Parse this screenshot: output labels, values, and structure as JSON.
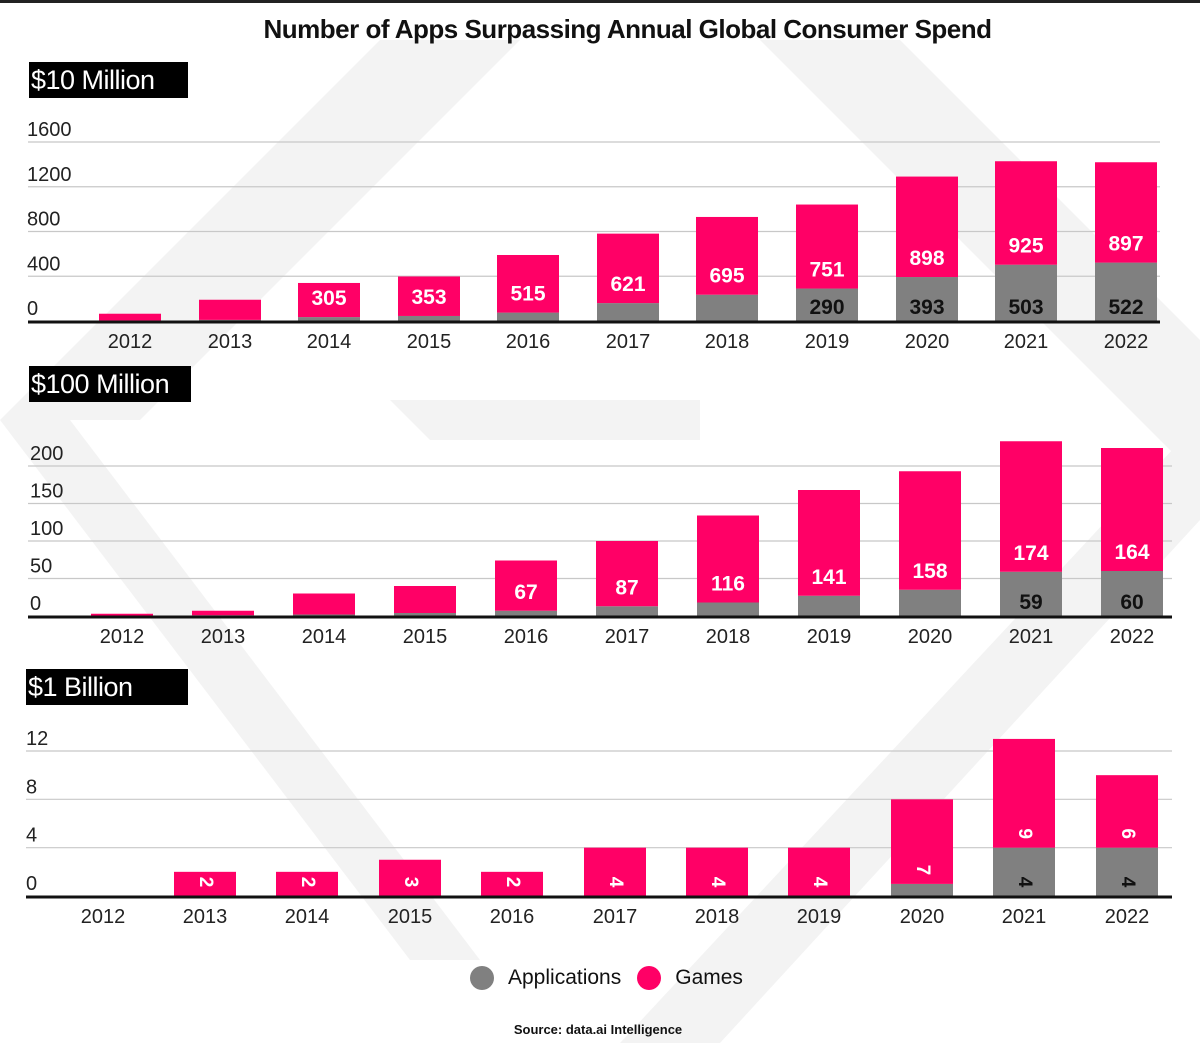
{
  "title": "Number of Apps Surpassing Annual Global Consumer Spend",
  "legend": [
    {
      "label": "Applications",
      "color": "#808080"
    },
    {
      "label": "Games",
      "color": "#ff0066"
    }
  ],
  "source": "Source: data.ai Intelligence",
  "colors": {
    "applications": "#808080",
    "games": "#ff0066",
    "axis": "#111111",
    "grid": "#c8c8c8"
  },
  "chart_data": [
    {
      "type": "bar",
      "stacked": true,
      "title": "$10 Million",
      "categories": [
        "2012",
        "2013",
        "2014",
        "2015",
        "2016",
        "2017",
        "2018",
        "2019",
        "2020",
        "2021",
        "2022"
      ],
      "yticks": [
        0,
        400,
        800,
        1200,
        1600
      ],
      "ylim": [
        0,
        1600
      ],
      "grid": true,
      "series": [
        {
          "name": "Applications",
          "values": [
            5,
            10,
            35,
            45,
            75,
            160,
            235,
            290,
            393,
            503,
            522
          ],
          "labels": [
            null,
            null,
            null,
            null,
            null,
            null,
            null,
            "290",
            "393",
            "503",
            "522"
          ]
        },
        {
          "name": "Games",
          "values": [
            60,
            180,
            305,
            353,
            515,
            621,
            695,
            751,
            898,
            925,
            897
          ],
          "labels": [
            null,
            null,
            "305",
            "353",
            "515",
            "621",
            "695",
            "751",
            "898",
            "925",
            "897"
          ]
        }
      ]
    },
    {
      "type": "bar",
      "stacked": true,
      "title": "$100 Million",
      "categories": [
        "2012",
        "2013",
        "2014",
        "2015",
        "2016",
        "2017",
        "2018",
        "2019",
        "2020",
        "2021",
        "2022"
      ],
      "yticks": [
        0,
        50,
        100,
        150,
        200
      ],
      "ylim": [
        0,
        200
      ],
      "grid": true,
      "series": [
        {
          "name": "Applications",
          "values": [
            0,
            1,
            2,
            4,
            7,
            13,
            18,
            27,
            35,
            59,
            60
          ],
          "labels": [
            null,
            null,
            null,
            null,
            null,
            null,
            null,
            null,
            null,
            "59",
            "60"
          ]
        },
        {
          "name": "Games",
          "values": [
            3,
            6,
            28,
            36,
            67,
            87,
            116,
            141,
            158,
            174,
            164
          ],
          "labels": [
            null,
            null,
            null,
            null,
            "67",
            "87",
            "116",
            "141",
            "158",
            "174",
            "164"
          ]
        }
      ]
    },
    {
      "type": "bar",
      "stacked": true,
      "title": "$1 Billion",
      "categories": [
        "2012",
        "2013",
        "2014",
        "2015",
        "2016",
        "2017",
        "2018",
        "2019",
        "2020",
        "2021",
        "2022"
      ],
      "yticks": [
        0,
        4,
        8,
        12
      ],
      "ylim": [
        0,
        12
      ],
      "grid": true,
      "labels_rotated": true,
      "series": [
        {
          "name": "Applications",
          "values": [
            0,
            0,
            0,
            0,
            0,
            0,
            0,
            0,
            1,
            4,
            4
          ],
          "labels": [
            null,
            null,
            null,
            null,
            null,
            null,
            null,
            null,
            null,
            "4",
            "4"
          ]
        },
        {
          "name": "Games",
          "values": [
            0,
            2,
            2,
            3,
            2,
            4,
            4,
            4,
            7,
            9,
            6
          ],
          "labels": [
            null,
            "2",
            "2",
            "3",
            "2",
            "4",
            "4",
            "4",
            "7",
            "9",
            "6"
          ]
        }
      ]
    }
  ]
}
